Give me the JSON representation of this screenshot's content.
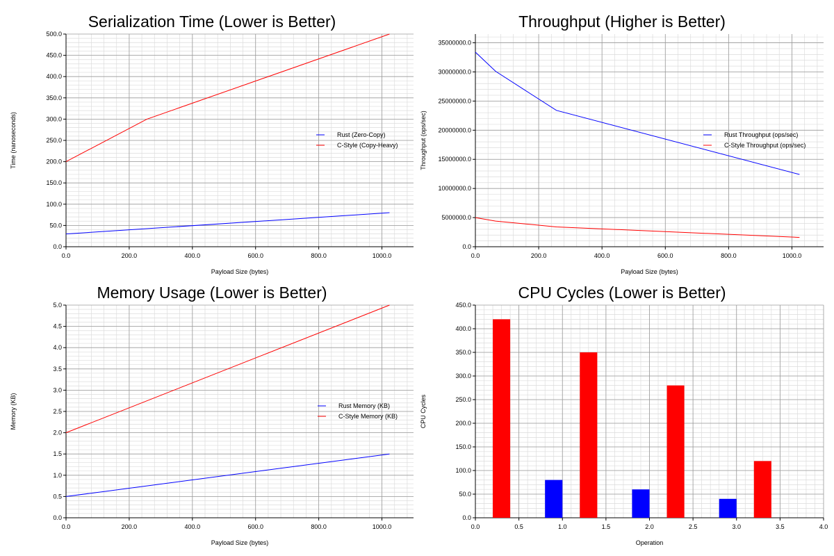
{
  "colors": {
    "rust": "#0000ff",
    "c_style": "#ff0000",
    "grid_major": "#9a9a9a",
    "grid_minor": "#dcdcdc",
    "axis": "#000000"
  },
  "chart_data": [
    {
      "type": "line",
      "title": "Serialization Time (Lower is Better)",
      "xlabel": "Payload Size (bytes)",
      "ylabel": "Time (nanoseconds)",
      "xlim": [
        0,
        1100
      ],
      "ylim": [
        0,
        500
      ],
      "xticks": [
        0,
        200,
        400,
        600,
        800,
        1000
      ],
      "xtick_labels": [
        "0.0",
        "200.0",
        "400.0",
        "600.0",
        "800.0",
        "1000.0"
      ],
      "yticks": [
        0,
        50,
        100,
        150,
        200,
        250,
        300,
        350,
        400,
        450,
        500
      ],
      "ytick_labels": [
        "0.0",
        "50.0",
        "100.0",
        "150.0",
        "200.0",
        "250.0",
        "300.0",
        "350.0",
        "400.0",
        "450.0",
        "500.0"
      ],
      "grid": true,
      "legend_position": "right",
      "series": [
        {
          "name": "Rust (Zero-Copy)",
          "color": "#0000ff",
          "x": [
            0,
            1024
          ],
          "y": [
            30,
            80
          ]
        },
        {
          "name": "C-Style (Copy-Heavy)",
          "color": "#ff0000",
          "x": [
            0,
            256,
            1024
          ],
          "y": [
            200,
            300,
            500
          ]
        }
      ]
    },
    {
      "type": "line",
      "title": "Throughput (Higher is Better)",
      "xlabel": "Payload Size (bytes)",
      "ylabel": "Throughput (ops/sec)",
      "xlim": [
        0,
        1100
      ],
      "ylim": [
        0,
        36500000
      ],
      "xticks": [
        0,
        200,
        400,
        600,
        800,
        1000
      ],
      "xtick_labels": [
        "0.0",
        "200.0",
        "400.0",
        "600.0",
        "800.0",
        "1000.0"
      ],
      "yticks": [
        0,
        5000000,
        10000000,
        15000000,
        20000000,
        25000000,
        30000000,
        35000000
      ],
      "ytick_labels": [
        "0.0",
        "5000000.0",
        "10000000.0",
        "15000000.0",
        "20000000.0",
        "25000000.0",
        "30000000.0",
        "35000000.0"
      ],
      "grid": true,
      "legend_position": "right",
      "series": [
        {
          "name": "Rust Throughput (ops/sec)",
          "color": "#0000ff",
          "x": [
            0,
            64,
            256,
            1024
          ],
          "y": [
            33400000,
            30100000,
            23400000,
            12400000
          ]
        },
        {
          "name": "C-Style Throughput (ops/sec)",
          "color": "#ff0000",
          "x": [
            0,
            64,
            256,
            1024
          ],
          "y": [
            5000000,
            4400000,
            3400000,
            1600000
          ]
        }
      ]
    },
    {
      "type": "line",
      "title": "Memory Usage (Lower is Better)",
      "xlabel": "Payload Size (bytes)",
      "ylabel": "Memory (KB)",
      "xlim": [
        0,
        1100
      ],
      "ylim": [
        0,
        5
      ],
      "xticks": [
        0,
        200,
        400,
        600,
        800,
        1000
      ],
      "xtick_labels": [
        "0.0",
        "200.0",
        "400.0",
        "600.0",
        "800.0",
        "1000.0"
      ],
      "yticks": [
        0,
        0.5,
        1,
        1.5,
        2,
        2.5,
        3,
        3.5,
        4,
        4.5,
        5
      ],
      "ytick_labels": [
        "0.0",
        "0.5",
        "1.0",
        "1.5",
        "2.0",
        "2.5",
        "3.0",
        "3.5",
        "4.0",
        "4.5",
        "5.0"
      ],
      "grid": true,
      "legend_position": "right",
      "series": [
        {
          "name": "Rust Memory (KB)",
          "color": "#0000ff",
          "x": [
            0,
            1024
          ],
          "y": [
            0.5,
            1.5
          ]
        },
        {
          "name": "C-Style Memory (KB)",
          "color": "#ff0000",
          "x": [
            0,
            1024
          ],
          "y": [
            2.0,
            5.0
          ]
        }
      ]
    },
    {
      "type": "bar",
      "title": "CPU Cycles (Lower is Better)",
      "xlabel": "Operation",
      "ylabel": "CPU Cycles",
      "xlim": [
        0,
        4
      ],
      "ylim": [
        0,
        450
      ],
      "xticks": [
        0,
        0.5,
        1,
        1.5,
        2,
        2.5,
        3,
        3.5,
        4
      ],
      "xtick_labels": [
        "0.0",
        "0.5",
        "1.0",
        "1.5",
        "2.0",
        "2.5",
        "3.0",
        "3.5",
        "4.0"
      ],
      "yticks": [
        0,
        50,
        100,
        150,
        200,
        250,
        300,
        350,
        400,
        450
      ],
      "ytick_labels": [
        "0.0",
        "50.0",
        "100.0",
        "150.0",
        "200.0",
        "250.0",
        "300.0",
        "350.0",
        "400.0",
        "450.0"
      ],
      "grid": true,
      "bar_width": 0.2,
      "bars": [
        {
          "x": 0.2,
          "value": 420,
          "color": "#ff0000"
        },
        {
          "x": 0.8,
          "value": 80,
          "color": "#0000ff"
        },
        {
          "x": 1.2,
          "value": 350,
          "color": "#ff0000"
        },
        {
          "x": 1.8,
          "value": 60,
          "color": "#0000ff"
        },
        {
          "x": 2.2,
          "value": 280,
          "color": "#ff0000"
        },
        {
          "x": 2.8,
          "value": 40,
          "color": "#0000ff"
        },
        {
          "x": 3.2,
          "value": 120,
          "color": "#ff0000"
        }
      ]
    }
  ]
}
